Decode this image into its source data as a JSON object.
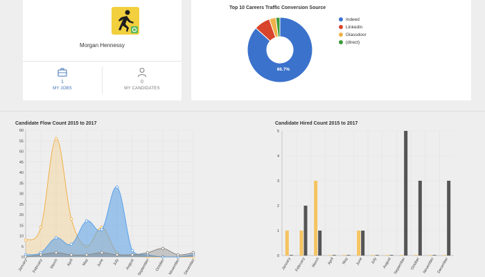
{
  "profile": {
    "name": "Morgan Hennessy",
    "avatar_icon": "running-man-icon",
    "badge_icon": "gear-icon",
    "stats": [
      {
        "count": "1",
        "label": "MY JOBS",
        "icon": "briefcase-icon"
      },
      {
        "count": "0",
        "label": "MY CANDIDATES",
        "icon": "user-icon"
      }
    ]
  },
  "colors": {
    "blue": "#3b72cc",
    "orange": "#f0b14a",
    "red": "#d9442c",
    "green": "#3a9b3a",
    "gray": "#555555",
    "lightblue": "#5aa0e8"
  },
  "chart_data": [
    {
      "type": "pie",
      "title": "Top 10 Careers Traffic Conversion Source",
      "labels": [
        "Indeed",
        "Linkedin",
        "Glassdoor",
        "(direct)"
      ],
      "values": [
        86.7,
        8.0,
        3.3,
        2.0
      ],
      "colors": [
        "#3b72cc",
        "#d9442c",
        "#f0b14a",
        "#3a9b3a"
      ],
      "data_labels": [
        "86.7%",
        "",
        "",
        ""
      ],
      "donut": true,
      "legend": "right"
    },
    {
      "type": "area",
      "title": "Candidate Flow Count 2015 to 2017",
      "categories": [
        "January",
        "February",
        "March",
        "April",
        "May",
        "June",
        "July",
        "August",
        "September",
        "October",
        "November",
        "December"
      ],
      "ylim": [
        0,
        60
      ],
      "yticks": [
        "0",
        "5",
        "10",
        "15",
        "20",
        "25",
        "30",
        "35",
        "40",
        "45",
        "50",
        "55",
        "60"
      ],
      "series": [
        {
          "values": [
            8,
            14,
            56,
            18,
            5,
            14,
            2,
            1,
            0,
            0,
            0,
            0
          ],
          "color": "#f0b14a"
        },
        {
          "values": [
            1,
            2,
            9,
            6,
            17,
            13,
            33,
            3,
            1,
            0,
            0,
            1
          ],
          "color": "#5aa0e8"
        },
        {
          "values": [
            0,
            1,
            2,
            1,
            1,
            2,
            1,
            1,
            2,
            4,
            1,
            2
          ],
          "color": "#888888"
        }
      ],
      "grid": true
    },
    {
      "type": "bar",
      "title": "Candidate Hired Count 2015 to 2017",
      "categories": [
        "January",
        "February",
        "March",
        "April",
        "May",
        "June",
        "July",
        "August",
        "September",
        "October",
        "November",
        "December"
      ],
      "ylim": [
        0,
        5
      ],
      "yticks": [
        "0",
        "1",
        "2",
        "3",
        "4",
        "5"
      ],
      "series": [
        {
          "values": [
            1,
            1,
            3,
            0,
            0,
            1,
            0,
            0,
            0,
            0,
            0,
            0
          ],
          "color": "#f5c361"
        },
        {
          "values": [
            0,
            2,
            1,
            0,
            0,
            1,
            0,
            0,
            5,
            3,
            0,
            3
          ],
          "color": "#555555"
        }
      ],
      "grid": true
    }
  ]
}
